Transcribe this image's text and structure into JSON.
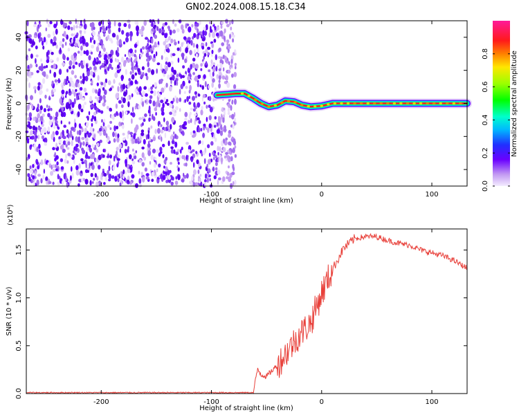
{
  "title": "GN02.2024.008.15.18.C34",
  "chart_data": [
    {
      "type": "heatmap",
      "xlabel": "Height of straight line (km)",
      "ylabel": "Frequency (Hz)",
      "xlim": [
        -268,
        132
      ],
      "ylim": [
        -50,
        50
      ],
      "xticks": [
        -200,
        -100,
        0,
        100
      ],
      "yticks": [
        -40,
        -20,
        0,
        20,
        40
      ],
      "noise_region_x": [
        -268,
        -78
      ],
      "signal_track": [
        [
          -95,
          5
        ],
        [
          -85,
          5.5
        ],
        [
          -78,
          6
        ],
        [
          -70,
          6
        ],
        [
          -62,
          3
        ],
        [
          -55,
          0
        ],
        [
          -48,
          -2
        ],
        [
          -40,
          -1
        ],
        [
          -33,
          1.5
        ],
        [
          -25,
          1
        ],
        [
          -18,
          -1
        ],
        [
          -10,
          -2
        ],
        [
          0,
          -1.5
        ],
        [
          10,
          0
        ],
        [
          30,
          0
        ],
        [
          60,
          0
        ],
        [
          100,
          0
        ],
        [
          132,
          0
        ]
      ],
      "colorbar": {
        "label": "Normalized spectral amplitude",
        "range": [
          0,
          1
        ],
        "ticks": [
          0.0,
          0.2,
          0.4,
          0.6,
          0.8
        ]
      }
    },
    {
      "type": "line",
      "xlabel": "Height of straight line (km)",
      "ylabel": "SNR (10 * v/v)",
      "scale_label": "(x10⁴)",
      "xlim": [
        -268,
        132
      ],
      "ylim": [
        0,
        1.72
      ],
      "xticks": [
        -200,
        -100,
        0,
        100
      ],
      "yticks": [
        "0.0",
        "0.5",
        "1.0",
        "1.5"
      ],
      "series": [
        {
          "color": "#e8403a",
          "x": [
            -268,
            -200,
            -150,
            -100,
            -80,
            -62,
            -58,
            -55,
            -50,
            -40,
            -30,
            -20,
            -10,
            0,
            10,
            20,
            30,
            40,
            50,
            60,
            70,
            80,
            90,
            100,
            110,
            120,
            132
          ],
          "y": [
            0.01,
            0.01,
            0.01,
            0.01,
            0.01,
            0.01,
            0.26,
            0.2,
            0.18,
            0.3,
            0.46,
            0.62,
            0.74,
            1.05,
            1.3,
            1.52,
            1.62,
            1.64,
            1.64,
            1.6,
            1.57,
            1.55,
            1.5,
            1.47,
            1.44,
            1.39,
            1.31
          ]
        }
      ]
    }
  ]
}
